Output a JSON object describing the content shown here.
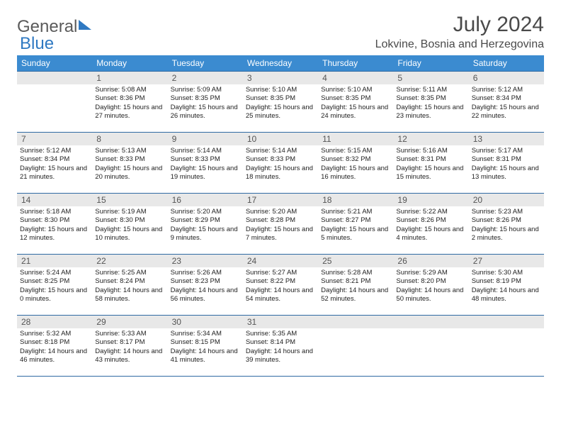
{
  "brand": {
    "part1": "General",
    "part2": "Blue"
  },
  "title": "July 2024",
  "location": "Lokvine, Bosnia and Herzegovina",
  "colors": {
    "header_bg": "#3b8bd0",
    "header_text": "#ffffff",
    "daynum_bg": "#e8e8e8",
    "rule": "#2f6aa3",
    "brand_gray": "#5a5a5a",
    "brand_blue": "#2f79c2",
    "body_text": "#222222",
    "page_bg": "#ffffff"
  },
  "weekdays": [
    "Sunday",
    "Monday",
    "Tuesday",
    "Wednesday",
    "Thursday",
    "Friday",
    "Saturday"
  ],
  "cells": [
    {
      "day": "",
      "sunrise": "",
      "sunset": "",
      "daylight": ""
    },
    {
      "day": "1",
      "sunrise": "Sunrise: 5:08 AM",
      "sunset": "Sunset: 8:36 PM",
      "daylight": "Daylight: 15 hours and 27 minutes."
    },
    {
      "day": "2",
      "sunrise": "Sunrise: 5:09 AM",
      "sunset": "Sunset: 8:35 PM",
      "daylight": "Daylight: 15 hours and 26 minutes."
    },
    {
      "day": "3",
      "sunrise": "Sunrise: 5:10 AM",
      "sunset": "Sunset: 8:35 PM",
      "daylight": "Daylight: 15 hours and 25 minutes."
    },
    {
      "day": "4",
      "sunrise": "Sunrise: 5:10 AM",
      "sunset": "Sunset: 8:35 PM",
      "daylight": "Daylight: 15 hours and 24 minutes."
    },
    {
      "day": "5",
      "sunrise": "Sunrise: 5:11 AM",
      "sunset": "Sunset: 8:35 PM",
      "daylight": "Daylight: 15 hours and 23 minutes."
    },
    {
      "day": "6",
      "sunrise": "Sunrise: 5:12 AM",
      "sunset": "Sunset: 8:34 PM",
      "daylight": "Daylight: 15 hours and 22 minutes."
    },
    {
      "day": "7",
      "sunrise": "Sunrise: 5:12 AM",
      "sunset": "Sunset: 8:34 PM",
      "daylight": "Daylight: 15 hours and 21 minutes."
    },
    {
      "day": "8",
      "sunrise": "Sunrise: 5:13 AM",
      "sunset": "Sunset: 8:33 PM",
      "daylight": "Daylight: 15 hours and 20 minutes."
    },
    {
      "day": "9",
      "sunrise": "Sunrise: 5:14 AM",
      "sunset": "Sunset: 8:33 PM",
      "daylight": "Daylight: 15 hours and 19 minutes."
    },
    {
      "day": "10",
      "sunrise": "Sunrise: 5:14 AM",
      "sunset": "Sunset: 8:33 PM",
      "daylight": "Daylight: 15 hours and 18 minutes."
    },
    {
      "day": "11",
      "sunrise": "Sunrise: 5:15 AM",
      "sunset": "Sunset: 8:32 PM",
      "daylight": "Daylight: 15 hours and 16 minutes."
    },
    {
      "day": "12",
      "sunrise": "Sunrise: 5:16 AM",
      "sunset": "Sunset: 8:31 PM",
      "daylight": "Daylight: 15 hours and 15 minutes."
    },
    {
      "day": "13",
      "sunrise": "Sunrise: 5:17 AM",
      "sunset": "Sunset: 8:31 PM",
      "daylight": "Daylight: 15 hours and 13 minutes."
    },
    {
      "day": "14",
      "sunrise": "Sunrise: 5:18 AM",
      "sunset": "Sunset: 8:30 PM",
      "daylight": "Daylight: 15 hours and 12 minutes."
    },
    {
      "day": "15",
      "sunrise": "Sunrise: 5:19 AM",
      "sunset": "Sunset: 8:30 PM",
      "daylight": "Daylight: 15 hours and 10 minutes."
    },
    {
      "day": "16",
      "sunrise": "Sunrise: 5:20 AM",
      "sunset": "Sunset: 8:29 PM",
      "daylight": "Daylight: 15 hours and 9 minutes."
    },
    {
      "day": "17",
      "sunrise": "Sunrise: 5:20 AM",
      "sunset": "Sunset: 8:28 PM",
      "daylight": "Daylight: 15 hours and 7 minutes."
    },
    {
      "day": "18",
      "sunrise": "Sunrise: 5:21 AM",
      "sunset": "Sunset: 8:27 PM",
      "daylight": "Daylight: 15 hours and 5 minutes."
    },
    {
      "day": "19",
      "sunrise": "Sunrise: 5:22 AM",
      "sunset": "Sunset: 8:26 PM",
      "daylight": "Daylight: 15 hours and 4 minutes."
    },
    {
      "day": "20",
      "sunrise": "Sunrise: 5:23 AM",
      "sunset": "Sunset: 8:26 PM",
      "daylight": "Daylight: 15 hours and 2 minutes."
    },
    {
      "day": "21",
      "sunrise": "Sunrise: 5:24 AM",
      "sunset": "Sunset: 8:25 PM",
      "daylight": "Daylight: 15 hours and 0 minutes."
    },
    {
      "day": "22",
      "sunrise": "Sunrise: 5:25 AM",
      "sunset": "Sunset: 8:24 PM",
      "daylight": "Daylight: 14 hours and 58 minutes."
    },
    {
      "day": "23",
      "sunrise": "Sunrise: 5:26 AM",
      "sunset": "Sunset: 8:23 PM",
      "daylight": "Daylight: 14 hours and 56 minutes."
    },
    {
      "day": "24",
      "sunrise": "Sunrise: 5:27 AM",
      "sunset": "Sunset: 8:22 PM",
      "daylight": "Daylight: 14 hours and 54 minutes."
    },
    {
      "day": "25",
      "sunrise": "Sunrise: 5:28 AM",
      "sunset": "Sunset: 8:21 PM",
      "daylight": "Daylight: 14 hours and 52 minutes."
    },
    {
      "day": "26",
      "sunrise": "Sunrise: 5:29 AM",
      "sunset": "Sunset: 8:20 PM",
      "daylight": "Daylight: 14 hours and 50 minutes."
    },
    {
      "day": "27",
      "sunrise": "Sunrise: 5:30 AM",
      "sunset": "Sunset: 8:19 PM",
      "daylight": "Daylight: 14 hours and 48 minutes."
    },
    {
      "day": "28",
      "sunrise": "Sunrise: 5:32 AM",
      "sunset": "Sunset: 8:18 PM",
      "daylight": "Daylight: 14 hours and 46 minutes."
    },
    {
      "day": "29",
      "sunrise": "Sunrise: 5:33 AM",
      "sunset": "Sunset: 8:17 PM",
      "daylight": "Daylight: 14 hours and 43 minutes."
    },
    {
      "day": "30",
      "sunrise": "Sunrise: 5:34 AM",
      "sunset": "Sunset: 8:15 PM",
      "daylight": "Daylight: 14 hours and 41 minutes."
    },
    {
      "day": "31",
      "sunrise": "Sunrise: 5:35 AM",
      "sunset": "Sunset: 8:14 PM",
      "daylight": "Daylight: 14 hours and 39 minutes."
    },
    {
      "day": "",
      "sunrise": "",
      "sunset": "",
      "daylight": ""
    },
    {
      "day": "",
      "sunrise": "",
      "sunset": "",
      "daylight": ""
    },
    {
      "day": "",
      "sunrise": "",
      "sunset": "",
      "daylight": ""
    }
  ]
}
